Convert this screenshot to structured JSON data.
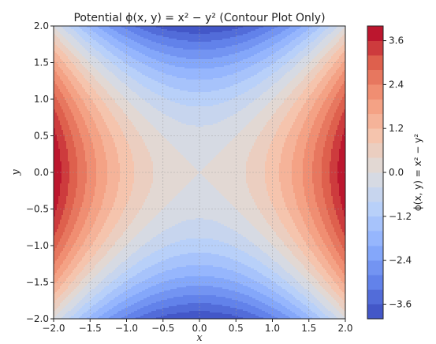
{
  "chart_data": {
    "type": "heatmap",
    "subtype": "filled-contour",
    "title": "Potential ϕ(x, y) = x² − y² (Contour Plot Only)",
    "xlabel": "x",
    "ylabel": "y",
    "xlim": [
      -2.0,
      2.0
    ],
    "ylim": [
      -2.0,
      2.0
    ],
    "x_ticks": [
      "−2.0",
      "−1.5",
      "−1.0",
      "−0.5",
      "0.0",
      "0.5",
      "1.0",
      "1.5",
      "2.0"
    ],
    "y_ticks": [
      "−2.0",
      "−1.5",
      "−1.0",
      "−0.5",
      "0.0",
      "0.5",
      "1.0",
      "1.5",
      "2.0"
    ],
    "x_tick_values": [
      -2.0,
      -1.5,
      -1.0,
      -0.5,
      0.0,
      0.5,
      1.0,
      1.5,
      2.0
    ],
    "y_tick_values": [
      -2.0,
      -1.5,
      -1.0,
      -0.5,
      0.0,
      0.5,
      1.0,
      1.5,
      2.0
    ],
    "function": "x^2 - y^2",
    "levels": [
      -4.0,
      -3.6,
      -3.2,
      -2.8,
      -2.4,
      -2.0,
      -1.6,
      -1.2,
      -0.8,
      -0.4,
      0.0,
      0.4,
      0.8,
      1.2,
      1.6,
      2.0,
      2.4,
      2.8,
      3.2,
      3.6,
      4.0
    ],
    "colormap": "coolwarm",
    "grid": true,
    "colorbar": {
      "label": "ϕ(x, y) = x² − y²",
      "range": [
        -4.0,
        4.0
      ],
      "ticks": [
        "3.6",
        "2.4",
        "1.2",
        "0.0",
        "−1.2",
        "−2.4",
        "−3.6"
      ],
      "tick_values": [
        3.6,
        2.4,
        1.2,
        0.0,
        -1.2,
        -2.4,
        -3.6
      ]
    }
  }
}
